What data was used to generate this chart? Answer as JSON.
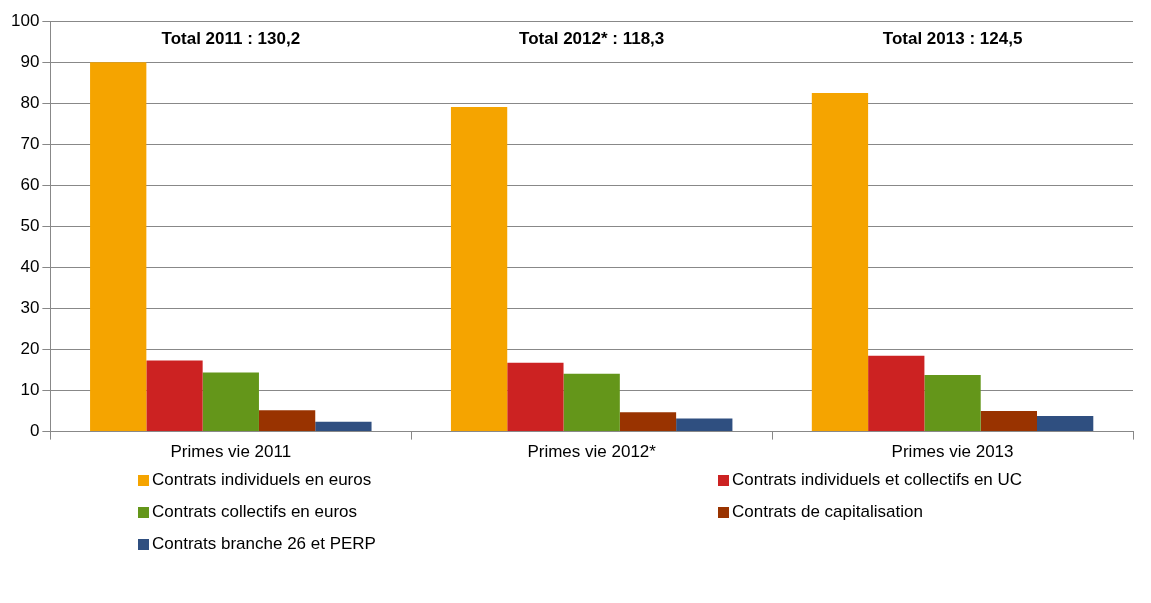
{
  "chart_data": {
    "type": "bar",
    "categories": [
      "Primes vie 2011",
      "Primes vie 2012*",
      "Primes vie 2013"
    ],
    "series": [
      {
        "name": "Contrats individuels en euros",
        "color": "#f5a400",
        "values": [
          90,
          79.1,
          82.5
        ]
      },
      {
        "name": "Contrats individuels et collectifs en UC",
        "color": "#cc2222",
        "values": [
          17.3,
          16.8,
          18.5
        ]
      },
      {
        "name": "Contrats collectifs en euros",
        "color": "#64961a",
        "values": [
          14.4,
          14.1,
          13.8
        ]
      },
      {
        "name": "Contrats de capitalisation",
        "color": "#993300",
        "values": [
          5.2,
          4.7,
          5.0
        ]
      },
      {
        "name": "Contrats branche 26 et PERP",
        "color": "#2f4f80",
        "values": [
          2.4,
          3.2,
          3.8
        ]
      }
    ],
    "annotations": [
      "Total 2011 : 130,2",
      "Total 2012* : 118,3",
      "Total 2013 : 124,5"
    ],
    "ylim": [
      0,
      100
    ],
    "yticks": [
      0,
      10,
      20,
      30,
      40,
      50,
      60,
      70,
      80,
      90,
      100
    ],
    "grid": "y",
    "legend": "bottom"
  }
}
